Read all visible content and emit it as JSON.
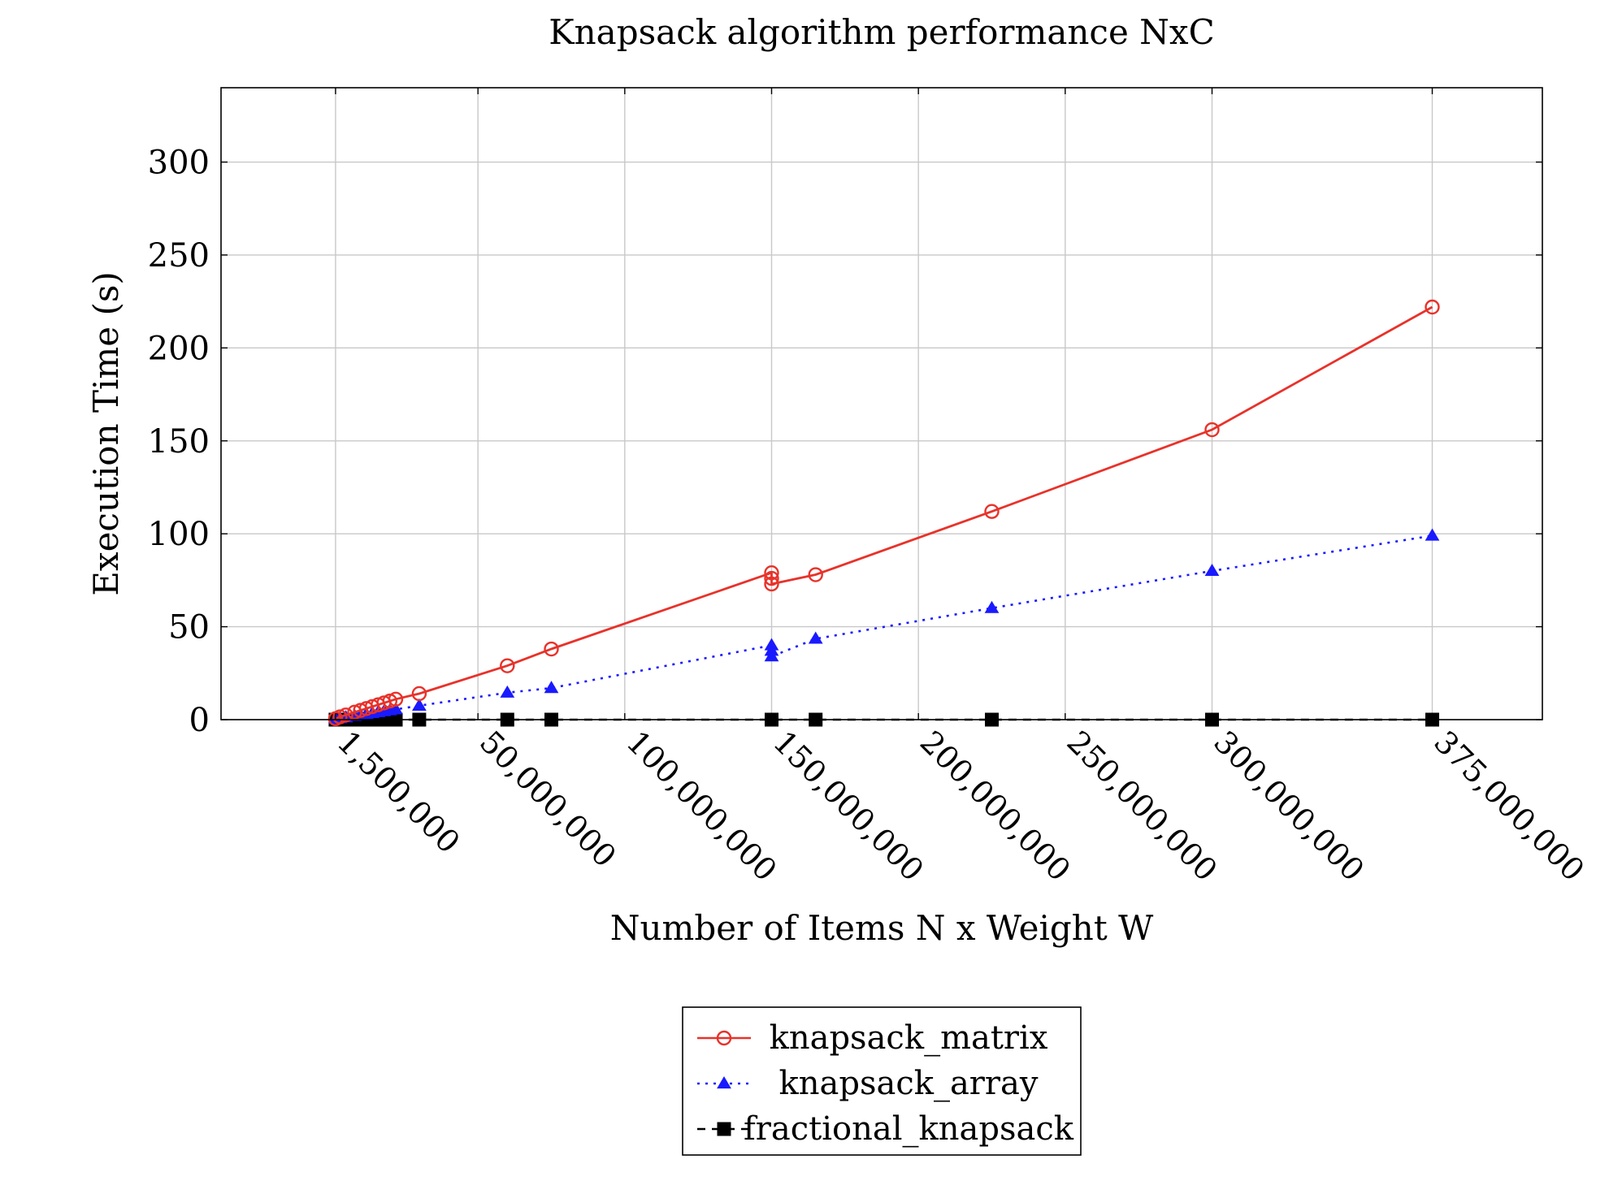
{
  "chart_data": {
    "type": "line",
    "title": "Knapsack algorithm performance NxC",
    "xlabel": "Number of Items N x Weight W",
    "ylabel": "Execution Time (s)",
    "x_tick_values": [
      1500000,
      50000000,
      100000000,
      150000000,
      200000000,
      250000000,
      300000000,
      375000000
    ],
    "x_tick_labels": [
      "1,500,000",
      "50,000,000",
      "100,000,000",
      "150,000,000",
      "200,000,000",
      "250,000,000",
      "300,000,000",
      "375,000,000"
    ],
    "y_tick_values": [
      0,
      50,
      100,
      150,
      200,
      250,
      300
    ],
    "y_tick_labels": [
      "0",
      "50",
      "100",
      "150",
      "200",
      "250",
      "300"
    ],
    "xlim": [
      -37500000,
      412500000
    ],
    "ylim": [
      0,
      340
    ],
    "grid": true,
    "legend_position": "bottom-center",
    "series": [
      {
        "name": "knapsack_matrix",
        "color": "#e8322a",
        "marker": "circle",
        "line_style": "solid",
        "points": [
          [
            1500000,
            0.5
          ],
          [
            3000000,
            1.5
          ],
          [
            5000000,
            2.5
          ],
          [
            8000000,
            4
          ],
          [
            10000000,
            5
          ],
          [
            12000000,
            6
          ],
          [
            14000000,
            7
          ],
          [
            16000000,
            8
          ],
          [
            18000000,
            9
          ],
          [
            20000000,
            10
          ],
          [
            22000000,
            11
          ],
          [
            30000000,
            14
          ],
          [
            60000000,
            29
          ],
          [
            75000000,
            38
          ],
          [
            150000000,
            79
          ],
          [
            150000000,
            76
          ],
          [
            150000000,
            73
          ],
          [
            165000000,
            78
          ],
          [
            225000000,
            112
          ],
          [
            300000000,
            156
          ],
          [
            375000000,
            222
          ]
        ]
      },
      {
        "name": "knapsack_array",
        "color": "#1a1aff",
        "marker": "triangle",
        "line_style": "dotted",
        "points": [
          [
            1500000,
            0.3
          ],
          [
            3000000,
            0.7
          ],
          [
            5000000,
            1.2
          ],
          [
            8000000,
            2
          ],
          [
            10000000,
            2.5
          ],
          [
            12000000,
            3
          ],
          [
            14000000,
            3.5
          ],
          [
            16000000,
            4
          ],
          [
            18000000,
            4.5
          ],
          [
            20000000,
            5
          ],
          [
            22000000,
            5.5
          ],
          [
            30000000,
            7.5
          ],
          [
            60000000,
            14.5
          ],
          [
            75000000,
            17
          ],
          [
            150000000,
            40
          ],
          [
            150000000,
            37
          ],
          [
            150000000,
            34
          ],
          [
            165000000,
            43.5
          ],
          [
            225000000,
            60
          ],
          [
            300000000,
            80
          ],
          [
            375000000,
            99
          ]
        ]
      },
      {
        "name": "fractional_knapsack",
        "color": "#000000",
        "marker": "square",
        "line_style": "dashed",
        "points": [
          [
            1500000,
            0
          ],
          [
            3000000,
            0
          ],
          [
            5000000,
            0
          ],
          [
            8000000,
            0
          ],
          [
            10000000,
            0
          ],
          [
            12000000,
            0
          ],
          [
            14000000,
            0
          ],
          [
            16000000,
            0
          ],
          [
            18000000,
            0
          ],
          [
            20000000,
            0
          ],
          [
            22000000,
            0
          ],
          [
            30000000,
            0
          ],
          [
            60000000,
            0
          ],
          [
            75000000,
            0
          ],
          [
            150000000,
            0
          ],
          [
            165000000,
            0
          ],
          [
            225000000,
            0
          ],
          [
            300000000,
            0
          ],
          [
            375000000,
            0
          ]
        ]
      }
    ]
  }
}
